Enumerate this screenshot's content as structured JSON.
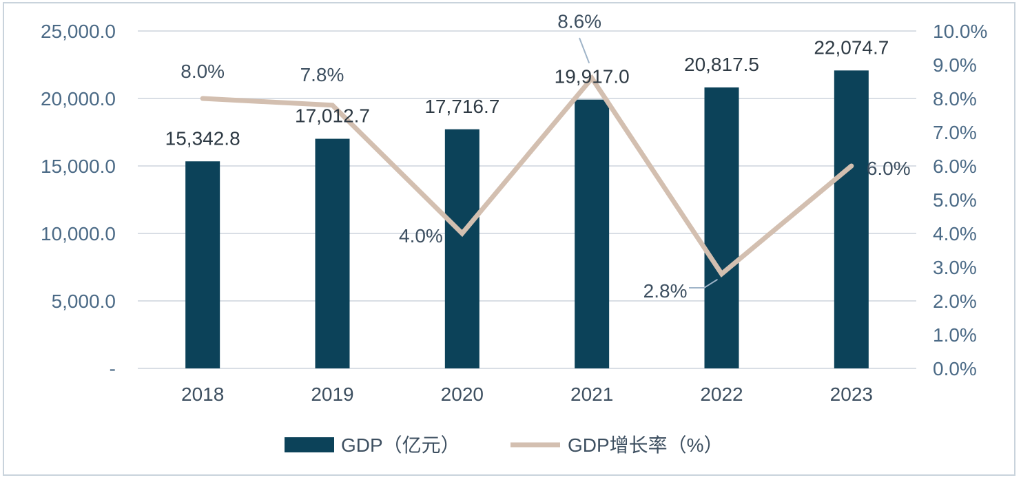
{
  "chart_data": {
    "type": "bar",
    "categories": [
      "2018",
      "2019",
      "2020",
      "2021",
      "2022",
      "2023"
    ],
    "series": [
      {
        "name": "GDP（亿元）",
        "type": "bar",
        "axis": "left",
        "color": "#0c4259",
        "values": [
          15342.8,
          17012.7,
          17716.7,
          19917.0,
          20817.5,
          22074.7
        ],
        "labels": [
          "15,342.8",
          "17,012.7",
          "17,716.7",
          "19,917.0",
          "20,817.5",
          "22,074.7"
        ]
      },
      {
        "name": "GDP增长率（%）",
        "type": "line",
        "axis": "right",
        "color": "#d3bfb0",
        "values": [
          8.0,
          7.8,
          4.0,
          8.6,
          2.8,
          6.0
        ],
        "labels": [
          "8.0%",
          "7.8%",
          "4.0%",
          "8.6%",
          "2.8%",
          "6.0%"
        ]
      }
    ],
    "y_left": {
      "range": [
        0,
        25000
      ],
      "ticks": [
        0,
        5000,
        10000,
        15000,
        20000,
        25000
      ],
      "tick_labels": [
        "-",
        "5,000.0",
        "10,000.0",
        "15,000.0",
        "20,000.0",
        "25,000.0"
      ]
    },
    "y_right": {
      "range": [
        0,
        10
      ],
      "ticks": [
        0,
        1,
        2,
        3,
        4,
        5,
        6,
        7,
        8,
        9,
        10
      ],
      "tick_labels": [
        "0.0%",
        "1.0%",
        "2.0%",
        "3.0%",
        "4.0%",
        "5.0%",
        "6.0%",
        "7.0%",
        "8.0%",
        "9.0%",
        "10.0%"
      ]
    },
    "grid": true,
    "legend_position": "bottom"
  }
}
